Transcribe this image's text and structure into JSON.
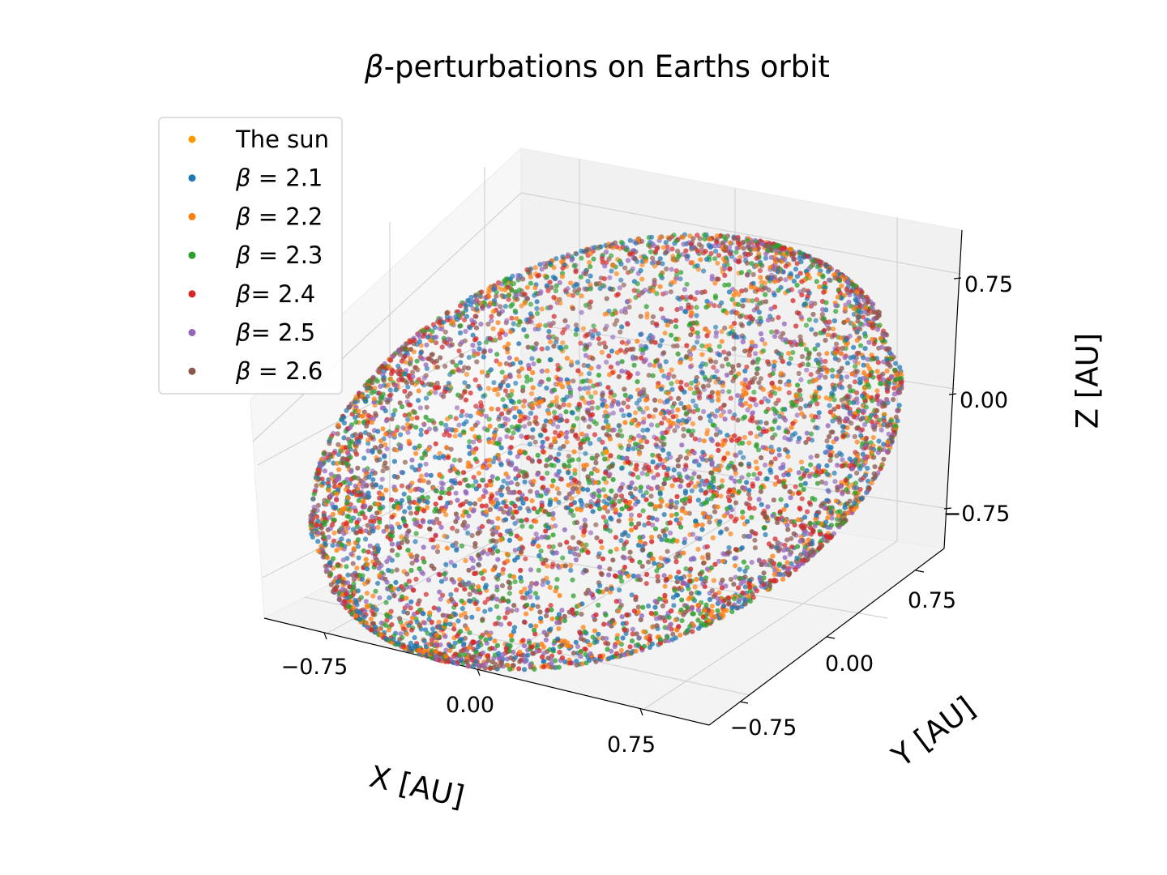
{
  "chart_data": {
    "type": "scatter",
    "projection": "3d",
    "title_symbol": "β",
    "title_rest": "-perturbations on Earths orbit",
    "xlabel": "X [AU]",
    "ylabel": "Y [AU]",
    "zlabel": "Z [AU]",
    "xlim": [
      -1.1,
      1.1
    ],
    "ylim": [
      -1.1,
      1.1
    ],
    "zlim": [
      -1.1,
      1.1
    ],
    "xticks": [
      -0.75,
      0.0,
      0.75
    ],
    "yticks": [
      -0.75,
      0.0,
      0.75
    ],
    "zticks": [
      -0.75,
      0.0,
      0.75
    ],
    "xtick_labels": [
      "−0.75",
      "0.00",
      "0.75"
    ],
    "ytick_labels": [
      "−0.75",
      "0.00",
      "0.75"
    ],
    "ztick_labels": [
      "−0.75",
      "0.00",
      "0.75"
    ],
    "grid": true,
    "legend_position": "upper-left",
    "legend": [
      {
        "symbol": "",
        "text": "The sun",
        "color": "#ff9900"
      },
      {
        "symbol": "β",
        "text": " = 2.1",
        "color": "#1f77b4"
      },
      {
        "symbol": "β",
        "text": " = 2.2",
        "color": "#ff7f0e"
      },
      {
        "symbol": "β",
        "text": " = 2.3",
        "color": "#2ca02c"
      },
      {
        "symbol": "β",
        "text": "= 2.4",
        "color": "#d62728"
      },
      {
        "symbol": "β",
        "text": "= 2.5",
        "color": "#9467bd"
      },
      {
        "symbol": "β",
        "text": " = 2.6",
        "color": "#8c564b"
      }
    ],
    "series": [
      {
        "name": "The sun",
        "color": "#ff9900",
        "points": [
          [
            0,
            0,
            0
          ]
        ]
      },
      {
        "name": "β = 2.1",
        "color": "#1f77b4",
        "orbit_radius_au": 1.0,
        "precession_loops": 13
      },
      {
        "name": "β = 2.2",
        "color": "#ff7f0e",
        "orbit_radius_au": 1.0,
        "precession_loops": 13
      },
      {
        "name": "β = 2.3",
        "color": "#2ca02c",
        "orbit_radius_au": 1.0,
        "precession_loops": 13
      },
      {
        "name": "β= 2.4",
        "color": "#d62728",
        "orbit_radius_au": 1.0,
        "precession_loops": 13
      },
      {
        "name": "β= 2.5",
        "color": "#9467bd",
        "orbit_radius_au": 1.0,
        "precession_loops": 13
      },
      {
        "name": "β = 2.6",
        "color": "#8c564b",
        "orbit_radius_au": 1.0,
        "precession_loops": 13
      }
    ]
  }
}
